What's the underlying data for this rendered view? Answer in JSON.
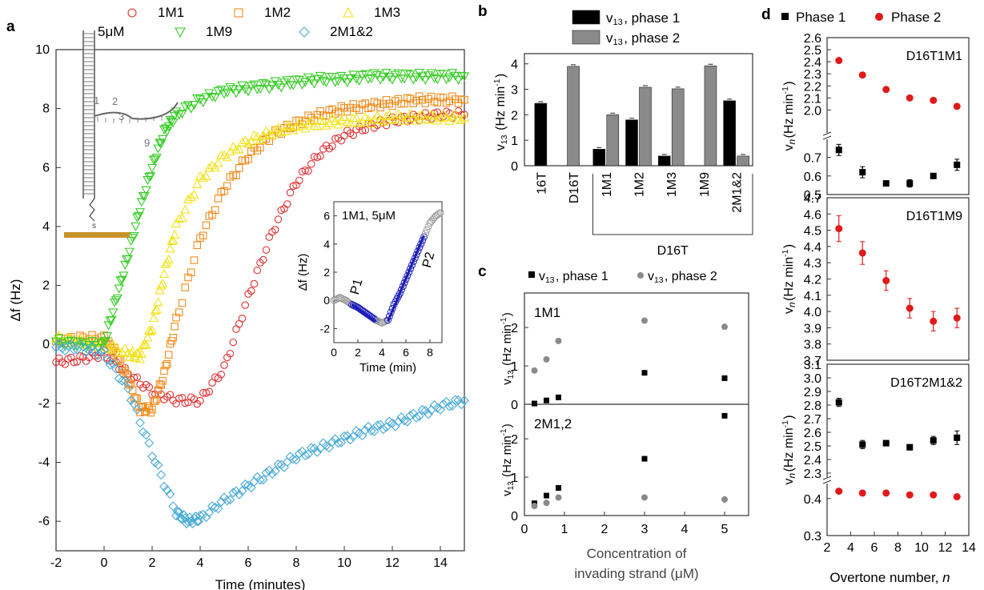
{
  "panels": {
    "a": {
      "letter": "a"
    },
    "b": {
      "letter": "b"
    },
    "c": {
      "letter": "c"
    },
    "d": {
      "letter": "d"
    }
  },
  "colors": {
    "1M1": "#e03030",
    "1M2": "#f08c1c",
    "1M3": "#f2e21a",
    "1M9": "#33cc22",
    "2M1&2": "#47a9d6",
    "phase1_bar": "#000000",
    "phase2_bar": "#8a8a8a",
    "phase2_point": "#e01a1a",
    "inset_fit": "#1c1cb8"
  },
  "chart_data": [
    {
      "id": "a",
      "type": "scatter",
      "xlabel": "Time (minutes)",
      "ylabel": "Δf (Hz)",
      "xlim": [
        -2,
        15
      ],
      "ylim": [
        -7,
        10
      ],
      "xticks": [
        "-2",
        "0",
        "2",
        "4",
        "6",
        "8",
        "10",
        "12",
        "14"
      ],
      "yticks": [
        "-6",
        "-4",
        "-2",
        "0",
        "2",
        "4",
        "6",
        "8",
        "10"
      ],
      "annotation": "5μM",
      "diagram_labels": [
        "1",
        "2",
        "3",
        "9",
        "s"
      ],
      "series": [
        {
          "name": "1M1",
          "marker": "circle",
          "x": [
            -2,
            -1,
            0,
            1,
            2,
            3,
            4,
            5,
            6,
            7,
            8,
            9,
            10,
            11,
            12,
            13,
            14,
            15
          ],
          "y": [
            -0.6,
            -0.5,
            -0.3,
            -1.0,
            -1.6,
            -1.9,
            -1.9,
            -0.8,
            1.6,
            3.8,
            5.5,
            6.5,
            7.1,
            7.4,
            7.6,
            7.7,
            7.8,
            7.8
          ]
        },
        {
          "name": "1M2",
          "marker": "square",
          "x": [
            -2,
            -1,
            0,
            0.5,
            1,
            1.5,
            2,
            2.5,
            3,
            4,
            5,
            6,
            7,
            8,
            9,
            10,
            11,
            12,
            13,
            14,
            15
          ],
          "y": [
            0.1,
            0.2,
            0.2,
            -0.3,
            -1.2,
            -2.2,
            -2.2,
            -1.0,
            0.8,
            3.6,
            5.3,
            6.4,
            7.1,
            7.5,
            7.8,
            8.0,
            8.1,
            8.2,
            8.3,
            8.3,
            8.3
          ]
        },
        {
          "name": "1M3",
          "marker": "triangle-up",
          "x": [
            -2,
            -1,
            0,
            1,
            1.5,
            2,
            2.5,
            3,
            4,
            5,
            6,
            7,
            8,
            9,
            10,
            11,
            12,
            13,
            14,
            15
          ],
          "y": [
            0.2,
            0.1,
            0.0,
            -0.3,
            -0.4,
            0.6,
            2.4,
            4.0,
            5.6,
            6.4,
            6.9,
            7.2,
            7.4,
            7.5,
            7.6,
            7.6,
            7.7,
            7.7,
            7.7,
            7.7
          ]
        },
        {
          "name": "1M9",
          "marker": "triangle-down",
          "x": [
            -2,
            -1,
            0,
            0.5,
            1,
            1.5,
            2,
            2.5,
            3,
            4,
            5,
            6,
            7,
            8,
            9,
            10,
            11,
            12,
            13,
            14,
            15
          ],
          "y": [
            0.1,
            0.0,
            0.0,
            1.5,
            3.0,
            4.6,
            6.0,
            7.2,
            7.8,
            8.3,
            8.6,
            8.7,
            8.8,
            8.9,
            9.0,
            9.0,
            9.1,
            9.1,
            9.1,
            9.1,
            9.1
          ]
        },
        {
          "name": "2M1&2",
          "marker": "diamond",
          "x": [
            -2,
            -1,
            0,
            1,
            2,
            3,
            3.5,
            4,
            5,
            6,
            7,
            8,
            9,
            10,
            11,
            12,
            13,
            14,
            15
          ],
          "y": [
            -0.1,
            -0.1,
            -0.3,
            -1.5,
            -3.7,
            -5.7,
            -6.0,
            -5.9,
            -5.3,
            -4.8,
            -4.3,
            -3.8,
            -3.5,
            -3.2,
            -2.9,
            -2.7,
            -2.4,
            -2.1,
            -1.9
          ]
        }
      ]
    },
    {
      "id": "a-inset",
      "type": "scatter",
      "title": "1M1, 5μM",
      "xlabel": "Time (min)",
      "ylabel": "Δf (Hz)",
      "xlim": [
        0,
        9
      ],
      "ylim": [
        -3,
        7
      ],
      "xticks": [
        "0",
        "2",
        "4",
        "6",
        "8"
      ],
      "yticks": [
        "-2",
        "0",
        "2",
        "4",
        "6"
      ],
      "x": [
        0,
        0.5,
        1,
        1.5,
        2,
        2.5,
        3,
        3.5,
        4,
        4.5,
        5,
        5.5,
        6,
        6.5,
        7,
        7.5,
        8,
        8.5,
        9
      ],
      "y": [
        0,
        0.2,
        0,
        -0.3,
        -0.5,
        -0.8,
        -1.1,
        -1.4,
        -1.6,
        -1.4,
        -0.3,
        0.5,
        1.5,
        2.5,
        3.5,
        4.5,
        5.5,
        6.0,
        6.3
      ],
      "fits": [
        {
          "label": "P1",
          "x": [
            1.5,
            3.5
          ],
          "y": [
            -0.3,
            -1.5
          ]
        },
        {
          "label": "P2",
          "x": [
            4.5,
            7.5
          ],
          "y": [
            -1.5,
            4.6
          ]
        }
      ]
    },
    {
      "id": "b",
      "type": "bar",
      "ylabel": "v13 (Hz min-1)",
      "ylim": [
        0,
        4.4
      ],
      "yticks": [
        "0",
        "1",
        "2",
        "3",
        "4"
      ],
      "categories": [
        "16T",
        "D16T",
        "1M1",
        "1M2",
        "1M3",
        "1M9",
        "2M1&2"
      ],
      "group_label": "D16T",
      "series": [
        {
          "name": "v13, phase 1",
          "values": [
            2.45,
            null,
            0.65,
            1.8,
            0.38,
            null,
            2.55
          ]
        },
        {
          "name": "v13, phase 2",
          "values": [
            null,
            3.9,
            2.0,
            3.08,
            3.02,
            3.92,
            0.38
          ]
        }
      ]
    },
    {
      "id": "c",
      "type": "scatter",
      "xlabel": "Concentration of invading strand (μM)",
      "xlim": [
        0,
        5.6
      ],
      "xticks": [
        "0",
        "1",
        "2",
        "3",
        "4",
        "5"
      ],
      "legend": [
        "v13, phase 1",
        "v13, phase 2"
      ],
      "subplots": [
        {
          "label": "1M1",
          "ylabel": "v13 (Hz min-1)",
          "ylim": [
            0,
            2.9
          ],
          "yticks": [
            "0",
            "1",
            "2"
          ],
          "series": [
            {
              "name": "v13, phase 1",
              "x": [
                0.25,
                0.55,
                0.85,
                3,
                5
              ],
              "y": [
                0.02,
                0.1,
                0.18,
                0.82,
                0.68
              ]
            },
            {
              "name": "v13, phase 2",
              "x": [
                0.25,
                0.55,
                0.85,
                3,
                5
              ],
              "y": [
                0.88,
                1.17,
                1.65,
                2.18,
                2.02
              ]
            }
          ]
        },
        {
          "label": "2M1,2",
          "ylabel": "v13 (Hz min-1)",
          "ylim": [
            0,
            2.9
          ],
          "yticks": [
            "0",
            "1",
            "2"
          ],
          "series": [
            {
              "name": "v13, phase 1",
              "x": [
                0.25,
                0.55,
                0.85,
                3,
                5
              ],
              "y": [
                0.32,
                0.52,
                0.72,
                1.48,
                2.6
              ]
            },
            {
              "name": "v13, phase 2",
              "x": [
                0.25,
                0.55,
                0.85,
                3,
                5
              ],
              "y": [
                0.25,
                0.33,
                0.47,
                0.47,
                0.42
              ]
            }
          ]
        }
      ]
    },
    {
      "id": "d",
      "type": "scatter",
      "xlabel": "Overtone number, n",
      "xlim": [
        2,
        14
      ],
      "xticks": [
        "2",
        "4",
        "6",
        "8",
        "10",
        "12",
        "14"
      ],
      "legend": [
        "Phase 1",
        "Phase 2"
      ],
      "subplots": [
        {
          "label": "D16T1M1",
          "ylabel": "vn(Hz min-1)",
          "segments": [
            {
              "range": [
                1.85,
                2.6
              ],
              "ticks": [
                "2.0",
                "2.1",
                "2.2",
                "2.3",
                "2.4",
                "2.5",
                "2.6"
              ]
            },
            {
              "range": [
                0.5,
                0.78
              ],
              "ticks": [
                "0.5",
                "0.6",
                "0.7"
              ]
            }
          ],
          "series": [
            {
              "name": "Phase 1",
              "x": [
                3,
                5,
                7,
                9,
                11,
                13
              ],
              "y": [
                0.74,
                0.62,
                0.56,
                0.56,
                0.6,
                0.66
              ],
              "err": [
                0.03,
                0.03,
                0.01,
                0.02,
                0.01,
                0.03
              ]
            },
            {
              "name": "Phase 2",
              "x": [
                3,
                5,
                7,
                9,
                11,
                13
              ],
              "y": [
                2.41,
                2.29,
                2.17,
                2.1,
                2.08,
                2.03
              ],
              "err": [
                0.02,
                0.01,
                0.01,
                0.01,
                0.01,
                0.02
              ]
            }
          ]
        },
        {
          "label": "D16T1M9",
          "ylabel": "vn(Hz min-1)",
          "segments": [
            {
              "range": [
                3.7,
                4.7
              ],
              "ticks": [
                "3.7",
                "3.8",
                "3.9",
                "4.0",
                "4.1",
                "4.2",
                "4.3",
                "4.4",
                "4.5",
                "4.6",
                "4.7"
              ]
            }
          ],
          "series": [
            {
              "name": "Phase 2",
              "x": [
                3,
                5,
                7,
                9,
                11,
                13
              ],
              "y": [
                4.51,
                4.36,
                4.19,
                4.02,
                3.94,
                3.96
              ],
              "err": [
                0.08,
                0.07,
                0.06,
                0.06,
                0.06,
                0.06
              ]
            }
          ]
        },
        {
          "label": "D16T2M1&2",
          "ylabel": "vn(Hz min-1)",
          "segments": [
            {
              "range": [
                2.3,
                3.1
              ],
              "ticks": [
                "2.3",
                "2.4",
                "2.5",
                "2.6",
                "2.7",
                "2.8",
                "2.9",
                "3.0",
                "3.1"
              ]
            },
            {
              "range": [
                0.3,
                0.43
              ],
              "ticks": [
                "0.3",
                "0.4"
              ]
            }
          ],
          "series": [
            {
              "name": "Phase 1",
              "x": [
                3,
                5,
                7,
                9,
                11,
                13
              ],
              "y": [
                2.82,
                2.51,
                2.52,
                2.49,
                2.54,
                2.56
              ],
              "err": [
                0.03,
                0.03,
                0.02,
                0.02,
                0.03,
                0.05
              ]
            },
            {
              "name": "Phase 2",
              "x": [
                3,
                5,
                7,
                9,
                11,
                13
              ],
              "y": [
                0.42,
                0.415,
                0.415,
                0.41,
                0.41,
                0.405
              ],
              "err": [
                0.005,
                0.005,
                0.005,
                0.005,
                0.005,
                0.005
              ]
            }
          ]
        }
      ]
    }
  ]
}
